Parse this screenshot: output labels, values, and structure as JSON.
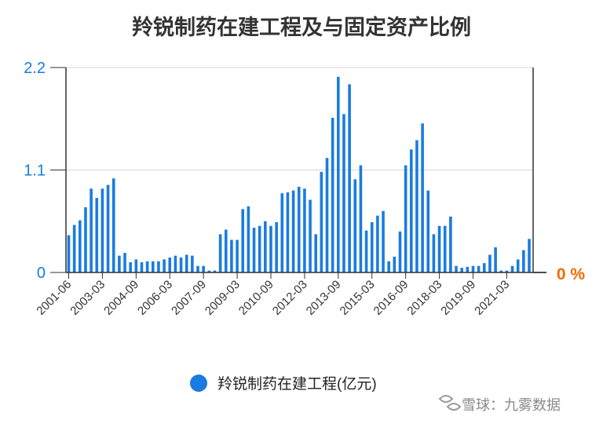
{
  "chart_data": {
    "type": "bar",
    "title": "羚锐制药在建工程及与固定资产比例",
    "series": [
      {
        "name": "羚锐制药在建工程(亿元)",
        "values": [
          0.4,
          0.51,
          0.56,
          0.7,
          0.9,
          0.8,
          0.9,
          0.94,
          1.01,
          0.18,
          0.21,
          0.11,
          0.14,
          0.11,
          0.12,
          0.12,
          0.12,
          0.14,
          0.16,
          0.18,
          0.16,
          0.19,
          0.18,
          0.07,
          0.07,
          0.02,
          0.02,
          0.41,
          0.46,
          0.35,
          0.35,
          0.68,
          0.71,
          0.48,
          0.5,
          0.55,
          0.5,
          0.54,
          0.85,
          0.86,
          0.88,
          0.92,
          0.9,
          0.78,
          0.41,
          1.08,
          1.23,
          1.66,
          2.1,
          1.7,
          2.02,
          1.0,
          1.15,
          0.45,
          0.54,
          0.61,
          0.66,
          0.12,
          0.17,
          0.44,
          1.15,
          1.32,
          1.42,
          1.6,
          0.88,
          0.41,
          0.5,
          0.5,
          0.6,
          0.07,
          0.05,
          0.06,
          0.07,
          0.07,
          0.1,
          0.19,
          0.27,
          0.02,
          0.02,
          0.07,
          0.14,
          0.24,
          0.36
        ]
      }
    ],
    "x_tick_labels": [
      "2001-06",
      "2003-03",
      "2004-09",
      "2006-03",
      "2007-09",
      "2009-03",
      "2010-09",
      "2012-03",
      "2013-09",
      "2015-03",
      "2016-09",
      "2018-03",
      "2019-09",
      "2021-03"
    ],
    "y_left": {
      "ticks": [
        "0",
        "1.1",
        "2.2"
      ],
      "range": [
        0,
        2.2
      ],
      "color": "#1a7be0"
    },
    "y_right": {
      "label": "0 %",
      "color": "#f06c00"
    },
    "grid": true,
    "legend_position": "bottom",
    "bar_color": "#1a7be0"
  },
  "watermark": {
    "text": "雪球：九雾数据"
  }
}
